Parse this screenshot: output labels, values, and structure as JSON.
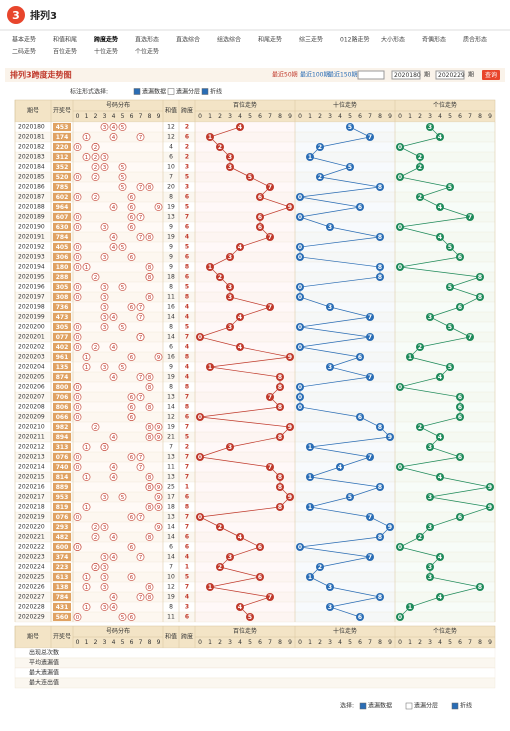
{
  "header": {
    "logo": "3",
    "title": "排列3"
  },
  "nav": [
    "基本走势",
    "和值和尾",
    "跨度走势",
    "直选形态",
    "直选综合",
    "组选综合",
    "和尾走势",
    "综三走势",
    "012路走势",
    "大小形态",
    "奇偶形态",
    "质合形态",
    "二码走势",
    "百位走势",
    "十位走势",
    "个位走势"
  ],
  "section": {
    "title": "排列3跨度走势图",
    "ranges": [
      "最近50期",
      "最近100期",
      "最近150期"
    ],
    "from": "2020180",
    "to": "2020229",
    "period_label": "期",
    "query": "查询"
  },
  "options": {
    "label": "标注形式选择:",
    "items": [
      "遗漏数据",
      "遗漏分层",
      "折线"
    ]
  },
  "table": {
    "columns": [
      "期号",
      "开奖号",
      "号码分布",
      "和值",
      "跨度",
      "百位走势",
      "十位走势",
      "个位走势"
    ],
    "digits": [
      0,
      1,
      2,
      3,
      4,
      5,
      6,
      7,
      8,
      9
    ],
    "rows": [
      {
        "issue": "2020180",
        "draw": "453",
        "digits": [
          4,
          5,
          3
        ],
        "sum": 12,
        "span": 2
      },
      {
        "issue": "2020181",
        "draw": "174",
        "digits": [
          1,
          7,
          4
        ],
        "sum": 12,
        "span": 6
      },
      {
        "issue": "2020182",
        "draw": "220",
        "digits": [
          2,
          2,
          0
        ],
        "sum": 4,
        "span": 2
      },
      {
        "issue": "2020183",
        "draw": "312",
        "digits": [
          3,
          1,
          2
        ],
        "sum": 6,
        "span": 2
      },
      {
        "issue": "2020184",
        "draw": "352",
        "digits": [
          3,
          5,
          2
        ],
        "sum": 10,
        "span": 3
      },
      {
        "issue": "2020185",
        "draw": "520",
        "digits": [
          5,
          2,
          0
        ],
        "sum": 7,
        "span": 5
      },
      {
        "issue": "2020186",
        "draw": "785",
        "digits": [
          7,
          8,
          5
        ],
        "sum": 20,
        "span": 3
      },
      {
        "issue": "2020187",
        "draw": "602",
        "digits": [
          6,
          0,
          2
        ],
        "sum": 8,
        "span": 6
      },
      {
        "issue": "2020188",
        "draw": "964",
        "digits": [
          9,
          6,
          4
        ],
        "sum": 19,
        "span": 5
      },
      {
        "issue": "2020189",
        "draw": "607",
        "digits": [
          6,
          0,
          7
        ],
        "sum": 13,
        "span": 7
      },
      {
        "issue": "2020190",
        "draw": "630",
        "digits": [
          6,
          3,
          0
        ],
        "sum": 9,
        "span": 6
      },
      {
        "issue": "2020191",
        "draw": "784",
        "digits": [
          7,
          8,
          4
        ],
        "sum": 19,
        "span": 4
      },
      {
        "issue": "2020192",
        "draw": "405",
        "digits": [
          4,
          0,
          5
        ],
        "sum": 9,
        "span": 5
      },
      {
        "issue": "2020193",
        "draw": "306",
        "digits": [
          3,
          0,
          6
        ],
        "sum": 9,
        "span": 6
      },
      {
        "issue": "2020194",
        "draw": "180",
        "digits": [
          1,
          8,
          0
        ],
        "sum": 9,
        "span": 8
      },
      {
        "issue": "2020195",
        "draw": "288",
        "digits": [
          2,
          8,
          8
        ],
        "sum": 18,
        "span": 6
      },
      {
        "issue": "2020196",
        "draw": "305",
        "digits": [
          3,
          0,
          5
        ],
        "sum": 8,
        "span": 5
      },
      {
        "issue": "2020197",
        "draw": "308",
        "digits": [
          3,
          0,
          8
        ],
        "sum": 11,
        "span": 8
      },
      {
        "issue": "2020198",
        "draw": "736",
        "digits": [
          7,
          3,
          6
        ],
        "sum": 16,
        "span": 4
      },
      {
        "issue": "2020199",
        "draw": "473",
        "digits": [
          4,
          7,
          3
        ],
        "sum": 14,
        "span": 4
      },
      {
        "issue": "2020200",
        "draw": "305",
        "digits": [
          3,
          0,
          5
        ],
        "sum": 8,
        "span": 5
      },
      {
        "issue": "2020201",
        "draw": "077",
        "digits": [
          0,
          7,
          7
        ],
        "sum": 14,
        "span": 7
      },
      {
        "issue": "2020202",
        "draw": "402",
        "digits": [
          4,
          0,
          2
        ],
        "sum": 6,
        "span": 4
      },
      {
        "issue": "2020203",
        "draw": "961",
        "digits": [
          9,
          6,
          1
        ],
        "sum": 16,
        "span": 8
      },
      {
        "issue": "2020204",
        "draw": "135",
        "digits": [
          1,
          3,
          5
        ],
        "sum": 9,
        "span": 4
      },
      {
        "issue": "2020205",
        "draw": "874",
        "digits": [
          8,
          7,
          4
        ],
        "sum": 19,
        "span": 4
      },
      {
        "issue": "2020206",
        "draw": "800",
        "digits": [
          8,
          0,
          0
        ],
        "sum": 8,
        "span": 8
      },
      {
        "issue": "2020207",
        "draw": "706",
        "digits": [
          7,
          0,
          6
        ],
        "sum": 13,
        "span": 7
      },
      {
        "issue": "2020208",
        "draw": "806",
        "digits": [
          8,
          0,
          6
        ],
        "sum": 14,
        "span": 8
      },
      {
        "issue": "2020209",
        "draw": "066",
        "digits": [
          0,
          6,
          6
        ],
        "sum": 12,
        "span": 6
      },
      {
        "issue": "2020210",
        "draw": "982",
        "digits": [
          9,
          8,
          2
        ],
        "sum": 19,
        "span": 7
      },
      {
        "issue": "2020211",
        "draw": "894",
        "digits": [
          8,
          9,
          4
        ],
        "sum": 21,
        "span": 5
      },
      {
        "issue": "2020212",
        "draw": "313",
        "digits": [
          3,
          1,
          3
        ],
        "sum": 7,
        "span": 2
      },
      {
        "issue": "2020213",
        "draw": "076",
        "digits": [
          0,
          7,
          6
        ],
        "sum": 13,
        "span": 7
      },
      {
        "issue": "2020214",
        "draw": "740",
        "digits": [
          7,
          4,
          0
        ],
        "sum": 11,
        "span": 7
      },
      {
        "issue": "2020215",
        "draw": "814",
        "digits": [
          8,
          1,
          4
        ],
        "sum": 13,
        "span": 7
      },
      {
        "issue": "2020216",
        "draw": "889",
        "digits": [
          8,
          8,
          9
        ],
        "sum": 25,
        "span": 1
      },
      {
        "issue": "2020217",
        "draw": "953",
        "digits": [
          9,
          5,
          3
        ],
        "sum": 17,
        "span": 6
      },
      {
        "issue": "2020218",
        "draw": "819",
        "digits": [
          8,
          1,
          9
        ],
        "sum": 18,
        "span": 8
      },
      {
        "issue": "2020219",
        "draw": "076",
        "digits": [
          0,
          7,
          6
        ],
        "sum": 13,
        "span": 7
      },
      {
        "issue": "2020220",
        "draw": "293",
        "digits": [
          2,
          9,
          3
        ],
        "sum": 14,
        "span": 7
      },
      {
        "issue": "2020221",
        "draw": "482",
        "digits": [
          4,
          8,
          2
        ],
        "sum": 14,
        "span": 6
      },
      {
        "issue": "2020222",
        "draw": "600",
        "digits": [
          6,
          0,
          0
        ],
        "sum": 6,
        "span": 6
      },
      {
        "issue": "2020223",
        "draw": "374",
        "digits": [
          3,
          7,
          4
        ],
        "sum": 14,
        "span": 4
      },
      {
        "issue": "2020224",
        "draw": "223",
        "digits": [
          2,
          2,
          3
        ],
        "sum": 7,
        "span": 1
      },
      {
        "issue": "2020225",
        "draw": "613",
        "digits": [
          6,
          1,
          3
        ],
        "sum": 10,
        "span": 5
      },
      {
        "issue": "2020226",
        "draw": "138",
        "digits": [
          1,
          3,
          8
        ],
        "sum": 12,
        "span": 7
      },
      {
        "issue": "2020227",
        "draw": "784",
        "digits": [
          7,
          8,
          4
        ],
        "sum": 19,
        "span": 4
      },
      {
        "issue": "2020228",
        "draw": "431",
        "digits": [
          4,
          3,
          1
        ],
        "sum": 8,
        "span": 3
      },
      {
        "issue": "2020229",
        "draw": "560",
        "digits": [
          5,
          6,
          0
        ],
        "sum": 11,
        "span": 6
      }
    ],
    "stats": [
      "出现总次数",
      "平均遗漏值",
      "最大遗漏值",
      "最大连出值"
    ]
  },
  "legend": {
    "label": "选择:",
    "items": [
      "遗漏数据",
      "遗漏分层",
      "折线"
    ]
  }
}
